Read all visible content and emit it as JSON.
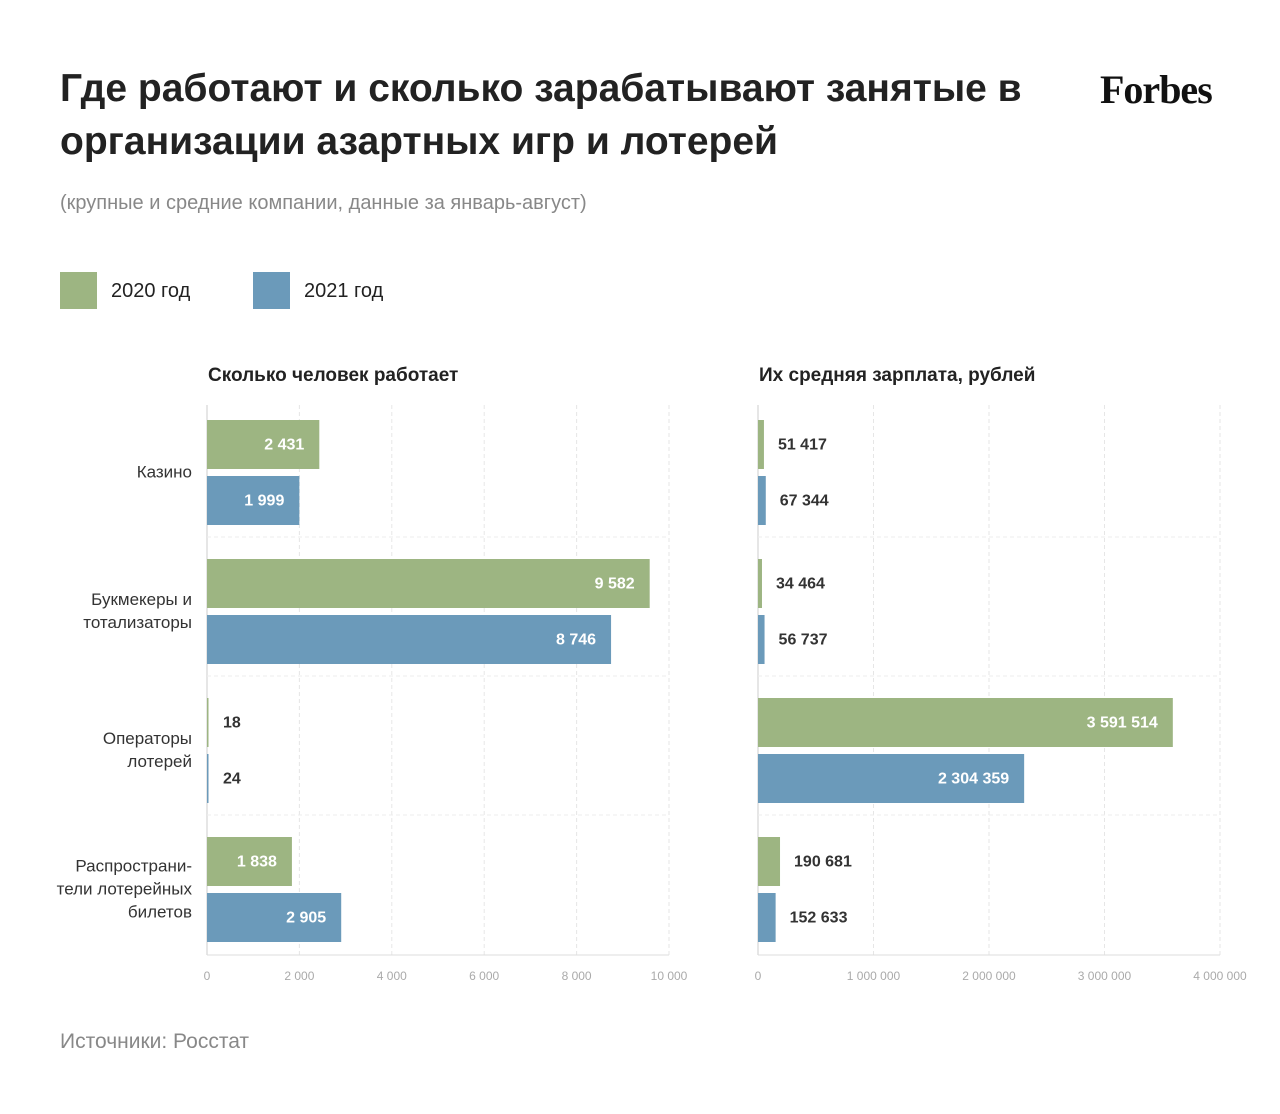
{
  "header": {
    "title": "Где работают и сколько зарабатывают занятые в организации азартных игр и лотерей",
    "subtitle": "(крупные и средние компании, данные за январь-август)",
    "logo": "Forbes"
  },
  "source": "Источники: Росстат",
  "chart_data": [
    {
      "type": "bar",
      "orientation": "horizontal",
      "title": "Сколько человек работает",
      "categories": [
        "Казино",
        "Букмекеры и тотализаторы",
        "Операторы лотерей",
        "Распространи-тели лотерейных билетов"
      ],
      "series": [
        {
          "name": "2020 год",
          "color": "#9db582",
          "values": [
            2431,
            9582,
            18,
            1838
          ],
          "value_labels": [
            "2 431",
            "9 582",
            "18",
            "1 838"
          ]
        },
        {
          "name": "2021 год",
          "color": "#6b9aba",
          "values": [
            1999,
            8746,
            24,
            2905
          ],
          "value_labels": [
            "1 999",
            "8 746",
            "24",
            "2 905"
          ]
        }
      ],
      "xlim": [
        0,
        10000
      ],
      "xticks": [
        0,
        {
          "value": 2000,
          "label": "2 000"
        },
        {
          "value": 4000,
          "label": "4 000"
        },
        {
          "value": 6000,
          "label": "6 000"
        },
        {
          "value": 8000,
          "label": "8 000"
        },
        {
          "value": 10000,
          "label": "10 000"
        }
      ],
      "grid": true
    },
    {
      "type": "bar",
      "orientation": "horizontal",
      "title": "Их средняя зарплата, рублей",
      "series": [
        {
          "color": "#9db582",
          "values": [
            51417,
            34464,
            3591514,
            190681
          ],
          "value_labels": [
            "51 417",
            "34 464",
            "3 591 514",
            "190 681"
          ]
        },
        {
          "color": "#6b9aba",
          "values": [
            67344,
            56737,
            2304359,
            152633
          ],
          "value_labels": [
            "67 344",
            "56 737",
            "2 304 359",
            "152 633"
          ]
        }
      ],
      "xlim": [
        0,
        4000000
      ],
      "xticks": [
        0,
        {
          "value": 1000000,
          "label": "1 000 000"
        },
        {
          "value": 2000000,
          "label": "2 000 000"
        },
        {
          "value": 3000000,
          "label": "3 000 000"
        },
        {
          "value": 4000000,
          "label": "4 000 000"
        }
      ],
      "grid": true
    }
  ]
}
